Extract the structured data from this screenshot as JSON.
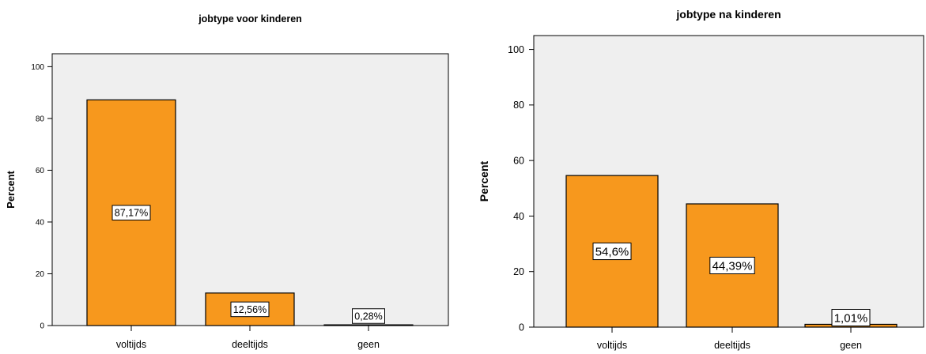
{
  "chart_data": [
    {
      "type": "bar",
      "title": "jobtype voor kinderen",
      "ylabel": "Percent",
      "xlabel": "",
      "ylim": [
        0,
        100
      ],
      "yticks": [
        "0",
        "20",
        "40",
        "60",
        "80",
        "100"
      ],
      "categories": [
        "voltijds",
        "deeltijds",
        "geen"
      ],
      "values": [
        87.17,
        12.56,
        0.28
      ],
      "data_labels": [
        "87,17%",
        "12,56%",
        "0,28%"
      ],
      "bar_color": "#f7981d",
      "plot_background": "#efefef",
      "grid": false,
      "legend": "none"
    },
    {
      "type": "bar",
      "title": "jobtype na kinderen",
      "ylabel": "Percent",
      "xlabel": "",
      "ylim": [
        0,
        100
      ],
      "yticks": [
        "0",
        "20",
        "40",
        "60",
        "80",
        "100"
      ],
      "categories": [
        "voltijds",
        "deeltijds",
        "geen"
      ],
      "values": [
        54.6,
        44.39,
        1.01
      ],
      "data_labels": [
        "54,6%",
        "44,39%",
        "1,01%"
      ],
      "bar_color": "#f7981d",
      "plot_background": "#efefef",
      "grid": false,
      "legend": "none"
    }
  ]
}
